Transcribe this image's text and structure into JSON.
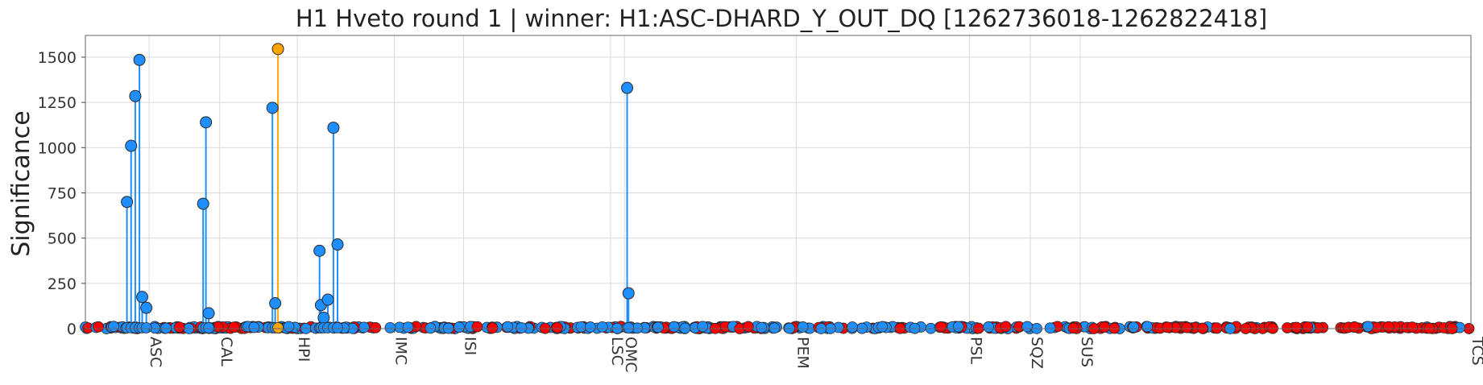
{
  "chart_data": {
    "type": "scatter",
    "title": "H1 Hveto round 1 | winner: H1:ASC-DHARD_Y_OUT_DQ [1262736018-1262822418]",
    "xlabel": "",
    "ylabel": "Significance",
    "ylim": [
      0,
      1620
    ],
    "grid": true,
    "legend": "none",
    "y_ticks": [
      0,
      250,
      500,
      750,
      1000,
      1250,
      1500
    ],
    "x_categories": [
      "ASC",
      "CAL",
      "HPI",
      "IMC",
      "ISI",
      "LSC",
      "OMC",
      "PEM",
      "PSL",
      "SQZ",
      "SUS",
      "TCS"
    ],
    "colors": {
      "channel": "#1f8fff",
      "winner": "#ffa500",
      "low": "#ff0000"
    },
    "series": [
      {
        "name": "",
        "color": "#1f8fff",
        "x": [
          3,
          3.3,
          3.6,
          3.9,
          4.1,
          4.4,
          8.5,
          8.7,
          8.9,
          13.5,
          13.7,
          16.9,
          17.0,
          17.2,
          17.5,
          17.9,
          18.2
        ],
        "y": [
          700,
          1010,
          1285,
          1485,
          175,
          115,
          690,
          1140,
          85,
          1220,
          140,
          430,
          130,
          60,
          160,
          1110,
          465
        ]
      },
      {
        "name": "",
        "color": "#1f8fff",
        "x": [
          39.1
        ],
        "y": [
          1330
        ]
      },
      {
        "name": "",
        "color": "#1f8fff",
        "x": [
          39.2
        ],
        "y": [
          195
        ]
      },
      {
        "name": "",
        "color": "#ffa500",
        "x": [
          13.9
        ],
        "y": [
          1545
        ]
      }
    ]
  }
}
